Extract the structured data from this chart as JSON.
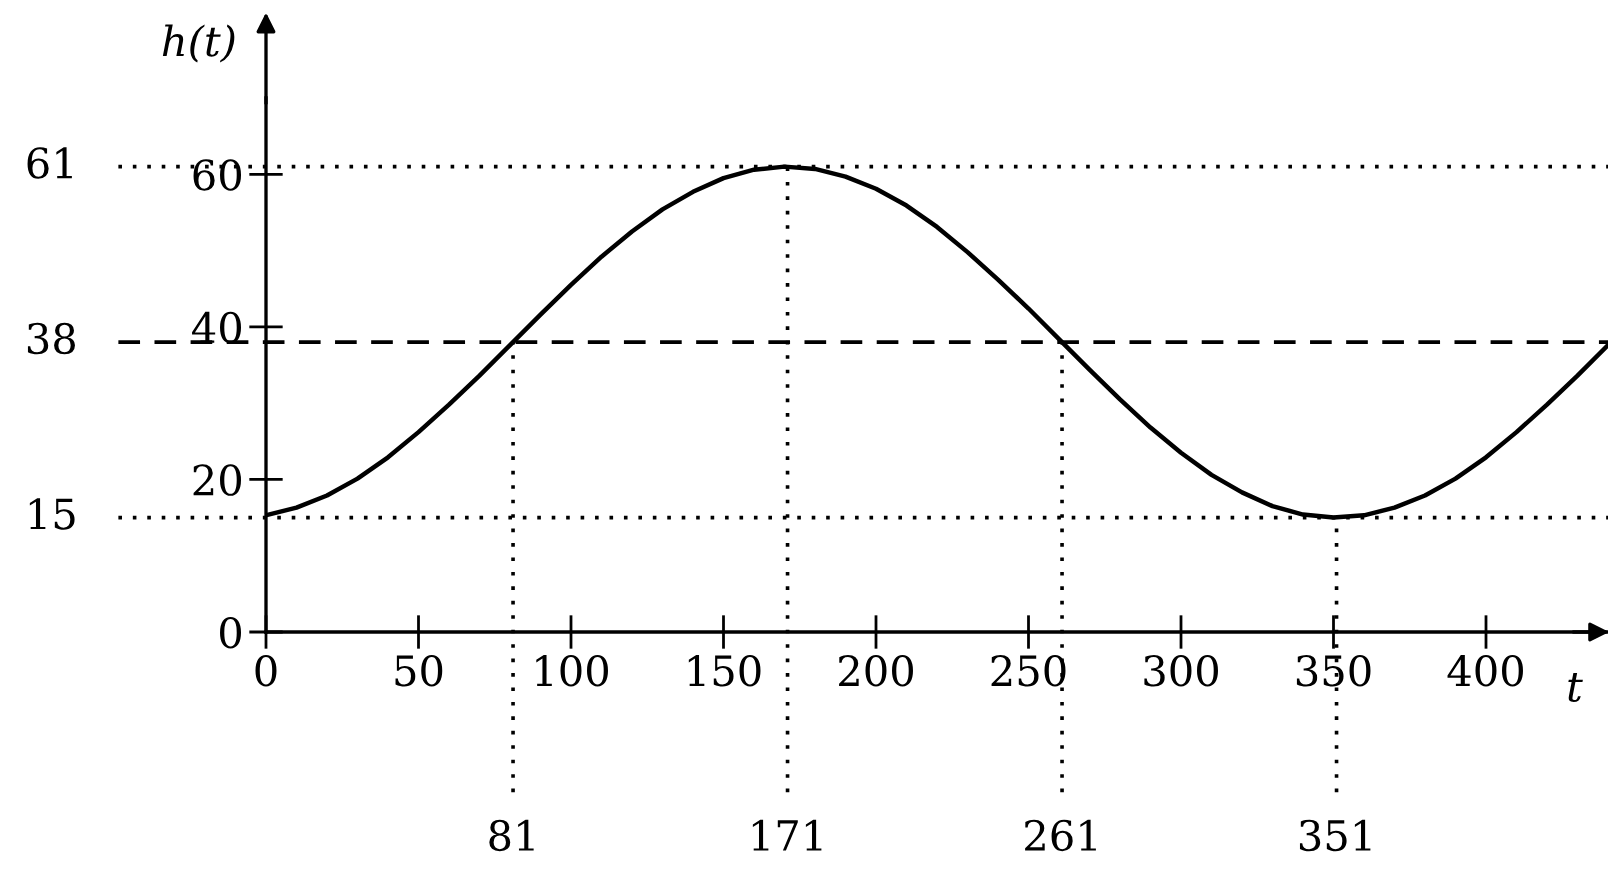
{
  "chart_data": {
    "type": "line",
    "xlabel": "t",
    "ylabel": "h(t)",
    "x": [
      0,
      10,
      20,
      30,
      40,
      50,
      60,
      70,
      80,
      90,
      100,
      110,
      120,
      130,
      140,
      150,
      160,
      170,
      180,
      190,
      200,
      210,
      220,
      230,
      240,
      250,
      260,
      270,
      280,
      290,
      300,
      310,
      320,
      330,
      340,
      350,
      360,
      370,
      380,
      390,
      400,
      410,
      420,
      430,
      440
    ],
    "series": [
      {
        "color": "#000000",
        "values": [
          15.3,
          16.3,
          17.9,
          20.1,
          22.9,
          26.2,
          29.8,
          33.6,
          37.6,
          41.6,
          45.5,
          49.2,
          52.5,
          55.4,
          57.7,
          59.5,
          60.6,
          61.0,
          60.7,
          59.7,
          58.1,
          55.9,
          53.1,
          49.8,
          46.2,
          42.4,
          38.4,
          34.4,
          30.5,
          26.8,
          23.5,
          20.6,
          18.3,
          16.5,
          15.4,
          15.0,
          15.3,
          16.3,
          17.9,
          20.1,
          22.9,
          26.2,
          29.8,
          33.6,
          37.6
        ]
      }
    ],
    "xlim": [
      0,
      440
    ],
    "ylim": [
      0,
      70
    ],
    "xticks": [
      0,
      50,
      100,
      150,
      200,
      250,
      300,
      350,
      400
    ],
    "yticks": [
      0,
      20,
      40,
      60
    ],
    "grid": false,
    "legend": false,
    "marker": "none",
    "line_style": "solid",
    "ref_lines": [
      {
        "axis": "y",
        "value": 61,
        "label": "61",
        "line_style": "dotted",
        "color": "#000000"
      },
      {
        "axis": "y",
        "value": 38,
        "label": "38",
        "line_style": "dashed",
        "color": "#000000"
      },
      {
        "axis": "y",
        "value": 15,
        "label": "15",
        "line_style": "dotted",
        "color": "#000000"
      },
      {
        "axis": "x",
        "value": 81,
        "label": "81",
        "line_style": "dotted",
        "color": "#000000"
      },
      {
        "axis": "x",
        "value": 171,
        "label": "171",
        "line_style": "dotted",
        "color": "#000000"
      },
      {
        "axis": "x",
        "value": 261,
        "label": "261",
        "line_style": "dotted",
        "color": "#000000"
      },
      {
        "axis": "x",
        "value": 351,
        "label": "351",
        "line_style": "dotted",
        "color": "#000000"
      }
    ]
  }
}
